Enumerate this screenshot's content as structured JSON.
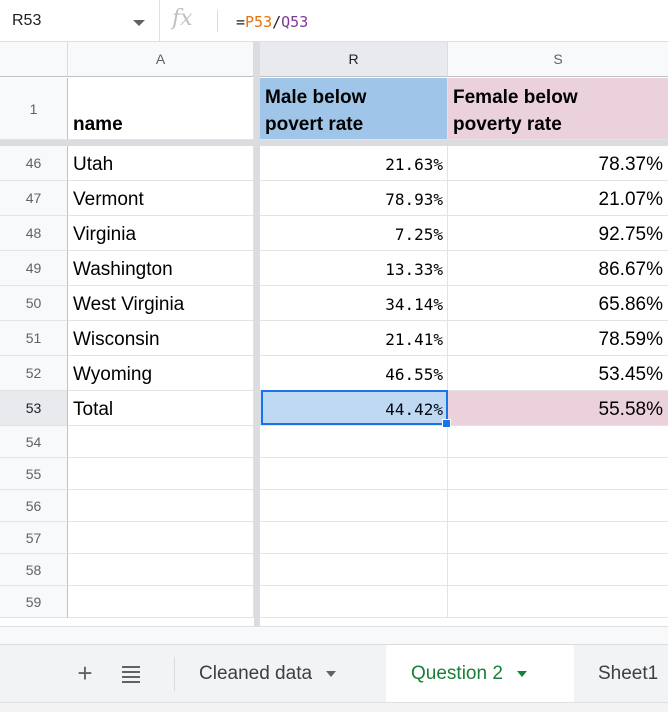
{
  "formula_bar": {
    "name_box": "R53",
    "fx_label": "fx",
    "formula_prefix": "=",
    "formula_ref1": "P53",
    "formula_op": "/",
    "formula_ref2": "Q53"
  },
  "columns": [
    {
      "key": "A",
      "label": "A"
    },
    {
      "key": "R",
      "label": "R"
    },
    {
      "key": "S",
      "label": "S"
    }
  ],
  "header_row": {
    "number": "1",
    "name": "name",
    "male_line1": "Male below",
    "male_line2": "povert rate",
    "female_line1": "Female below",
    "female_line2": "poverty rate"
  },
  "rows": [
    {
      "n": "46",
      "name": "Utah",
      "male": "21.63%",
      "female": "78.37%"
    },
    {
      "n": "47",
      "name": "Vermont",
      "male": "78.93%",
      "female": "21.07%"
    },
    {
      "n": "48",
      "name": "Virginia",
      "male": "7.25%",
      "female": "92.75%"
    },
    {
      "n": "49",
      "name": "Washington",
      "male": "13.33%",
      "female": "86.67%"
    },
    {
      "n": "50",
      "name": "West Virginia",
      "male": "34.14%",
      "female": "65.86%"
    },
    {
      "n": "51",
      "name": "Wisconsin",
      "male": "21.41%",
      "female": "78.59%"
    },
    {
      "n": "52",
      "name": "Wyoming",
      "male": "46.55%",
      "female": "53.45%"
    },
    {
      "n": "53",
      "name": "Total",
      "male": "44.42%",
      "female": "55.58%"
    }
  ],
  "empty_rows": [
    "54",
    "55",
    "56",
    "57",
    "58",
    "59"
  ],
  "sheet_tabs": [
    {
      "label": "Cleaned data",
      "active": false
    },
    {
      "label": "Question 2",
      "active": true
    },
    {
      "label": "Sheet1",
      "active": false
    }
  ],
  "colors": {
    "male_header_bg": "#9fc5e8",
    "female_header_bg": "#ead1dc",
    "selection": "#1a73e8",
    "active_tab": "#188038"
  }
}
